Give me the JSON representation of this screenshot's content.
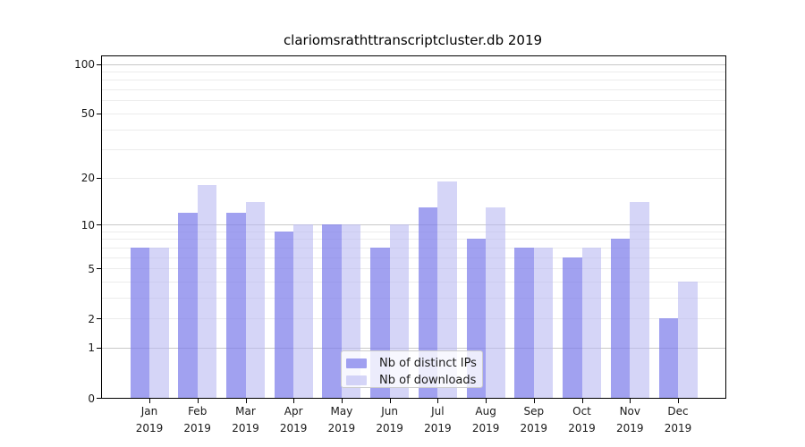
{
  "chart_data": {
    "type": "bar",
    "title": "clariomsrathttranscriptcluster.db 2019",
    "categories": [
      "Jan",
      "Feb",
      "Mar",
      "Apr",
      "May",
      "Jun",
      "Jul",
      "Aug",
      "Sep",
      "Oct",
      "Nov",
      "Dec"
    ],
    "category_year": "2019",
    "series": [
      {
        "name": "Nb of distinct IPs",
        "color": "rgba(130,130,235,0.75)",
        "values": [
          7,
          12,
          12,
          9,
          10,
          7,
          13,
          8,
          7,
          6,
          8,
          2
        ]
      },
      {
        "name": "Nb of downloads",
        "color": "rgba(185,185,242,0.60)",
        "values": [
          7,
          18,
          14,
          10,
          10,
          10,
          19,
          13,
          7,
          7,
          14,
          4
        ]
      }
    ],
    "xlabel": "",
    "ylabel": "",
    "yscale": "log1p",
    "ylim": [
      0,
      115
    ],
    "yticks": [
      0,
      1,
      2,
      5,
      10,
      20,
      50,
      100
    ],
    "major_gridlines": [
      1,
      10,
      100
    ],
    "minor_gridlines": [
      2,
      3,
      4,
      5,
      6,
      7,
      8,
      9,
      20,
      30,
      40,
      50,
      60,
      70,
      80,
      90
    ],
    "grid": true,
    "legend_position": "lower center",
    "colors": {
      "axis": "#000000",
      "major_grid": "#c8c8c8",
      "minor_grid": "#ececec",
      "text": "#1a1a1a",
      "legend_border": "#cccccc",
      "legend_bg": "rgba(255,255,255,0.8)"
    }
  }
}
